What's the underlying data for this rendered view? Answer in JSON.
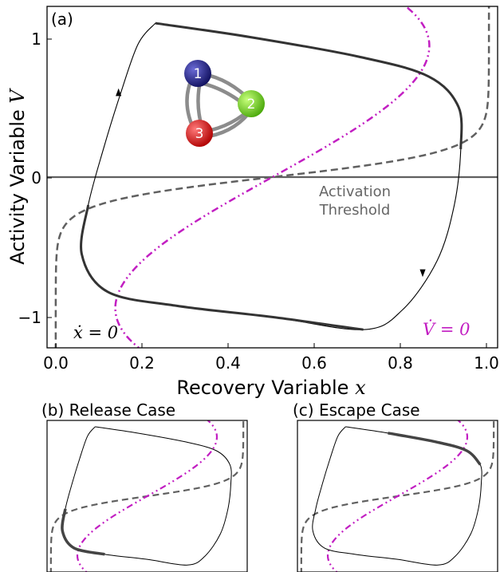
{
  "chart_data": [
    {
      "panel": "main",
      "type": "line",
      "label": "(a)",
      "xlabel": "Recovery Variable",
      "xlabel_var": "x",
      "ylabel": "Activity Variable",
      "ylabel_var": "V",
      "xlim": [
        -0.02,
        1.02
      ],
      "ylim": [
        -1.22,
        1.22
      ],
      "xticks": [
        "0.0",
        "0.2",
        "0.4",
        "0.6",
        "0.8",
        "1.0"
      ],
      "yticks": [
        "1",
        "0",
        "−1"
      ],
      "annotations": {
        "threshold_line1": "Activation",
        "threshold_line2": "Threshold",
        "x_nullcline_label": "ẋ = 0",
        "v_nullcline_label": "V̇ = 0"
      },
      "threshold_V": 0,
      "network_nodes": [
        {
          "label": "1",
          "color": "#1a1a7a"
        },
        {
          "label": "2",
          "color": "#6fd11a"
        },
        {
          "label": "3",
          "color": "#d41414"
        }
      ]
    },
    {
      "panel": "inset-release",
      "type": "line",
      "title": "(b) Release Case"
    },
    {
      "panel": "inset-escape",
      "type": "line",
      "title": "(c) Escape Case"
    }
  ],
  "colors": {
    "v_nullcline": "#c21ec2",
    "x_nullcline": "#606060",
    "trajectory": "#000000",
    "threshold": "#606060"
  }
}
